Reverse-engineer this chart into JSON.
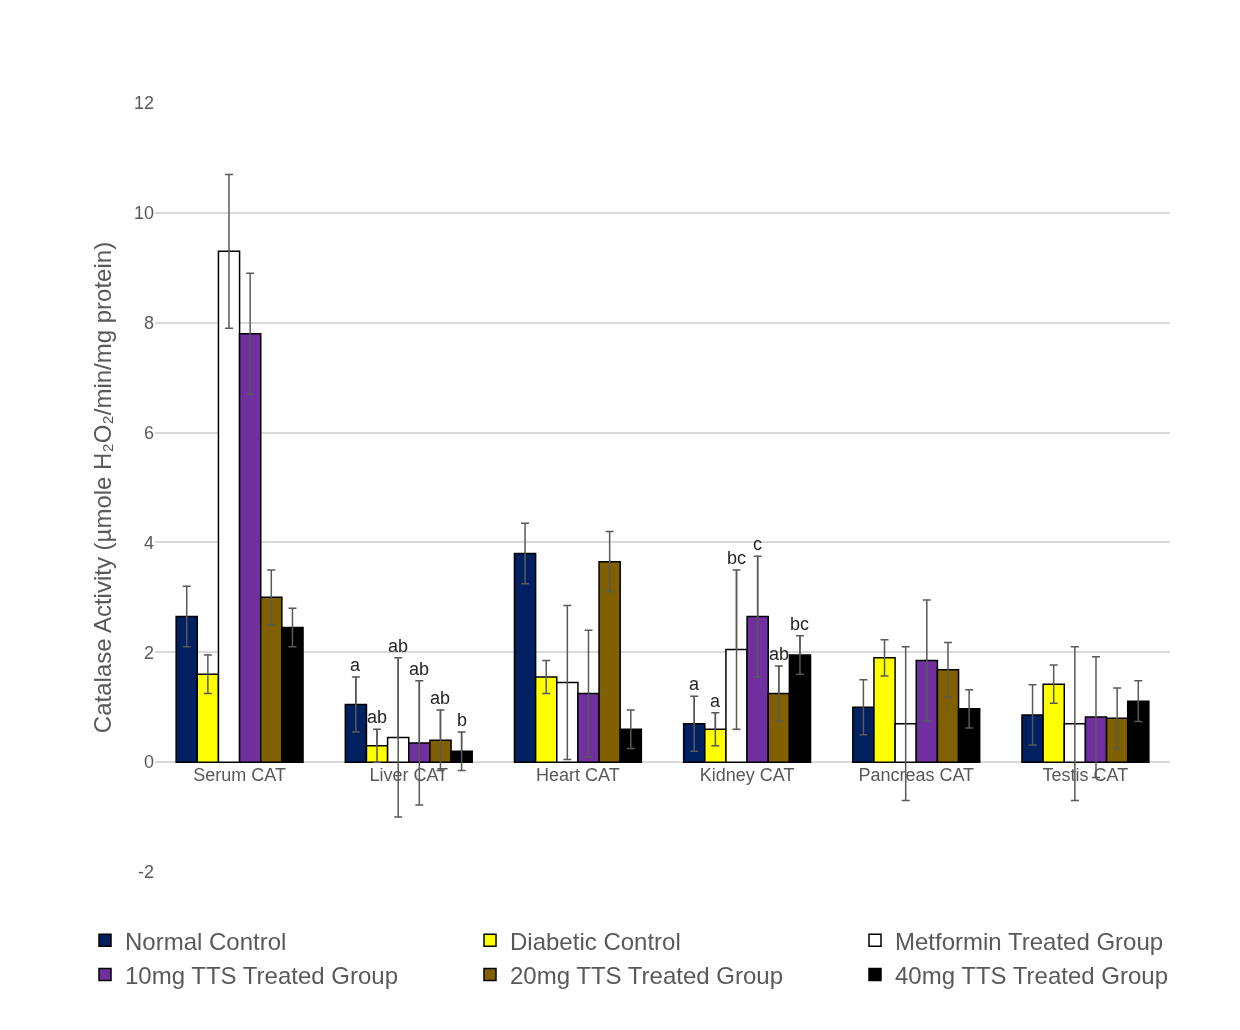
{
  "chart_data": {
    "type": "bar",
    "ylabel": "Catalase Activity (µmole H₂O₂/min/mg protein)",
    "categories": [
      "Serum CAT",
      "Liver CAT",
      "Heart CAT",
      "Kidney CAT",
      "Pancreas CAT",
      "Testis CAT"
    ],
    "series": [
      {
        "name": "Normal Control",
        "color": "#002060",
        "values": [
          2.65,
          1.05,
          3.8,
          0.7,
          1.0,
          0.86
        ],
        "errors": [
          0.55,
          0.5,
          0.55,
          0.5,
          0.5,
          0.55
        ],
        "value_labels": [
          null,
          "a",
          null,
          "a",
          null,
          null
        ]
      },
      {
        "name": "Diabetic Control",
        "color": "#ffff00",
        "values": [
          1.6,
          0.3,
          1.55,
          0.6,
          1.9,
          1.42
        ],
        "errors": [
          0.35,
          0.3,
          0.3,
          0.3,
          0.33,
          0.35
        ],
        "value_labels": [
          null,
          "ab",
          null,
          "a",
          null,
          null
        ]
      },
      {
        "name": "Metformin Treated Group",
        "color": "#ffffff",
        "values": [
          9.3,
          0.45,
          1.45,
          2.05,
          0.7,
          0.7
        ],
        "errors": [
          1.4,
          1.45,
          1.4,
          1.45,
          1.4,
          1.4
        ],
        "value_labels": [
          null,
          "ab",
          null,
          "bc",
          null,
          null
        ]
      },
      {
        "name": "10mg TTS Treated Group",
        "color": "#7030a0",
        "values": [
          7.8,
          0.35,
          1.25,
          2.65,
          1.85,
          0.82
        ],
        "errors": [
          1.1,
          1.13,
          1.15,
          1.1,
          1.1,
          1.1
        ],
        "value_labels": [
          null,
          "ab",
          null,
          "c",
          null,
          null
        ]
      },
      {
        "name": "20mg TTS Treated Group",
        "color": "#806000",
        "values": [
          3.0,
          0.4,
          3.65,
          1.25,
          1.68,
          0.8
        ],
        "errors": [
          0.5,
          0.55,
          0.55,
          0.5,
          0.5,
          0.55
        ],
        "value_labels": [
          null,
          "ab",
          null,
          "ab",
          null,
          null
        ]
      },
      {
        "name": "40mg TTS Treated Group",
        "color": "#000000",
        "values": [
          2.45,
          0.2,
          0.6,
          1.95,
          0.97,
          1.11
        ],
        "errors": [
          0.35,
          0.35,
          0.35,
          0.35,
          0.35,
          0.37
        ],
        "value_labels": [
          null,
          "b",
          null,
          "bc",
          null,
          null
        ]
      }
    ],
    "ylim": [
      -2,
      12
    ],
    "yticks": [
      -2,
      0,
      2,
      4,
      6,
      8,
      10,
      12
    ],
    "grid": "y",
    "legend": "bottom"
  }
}
